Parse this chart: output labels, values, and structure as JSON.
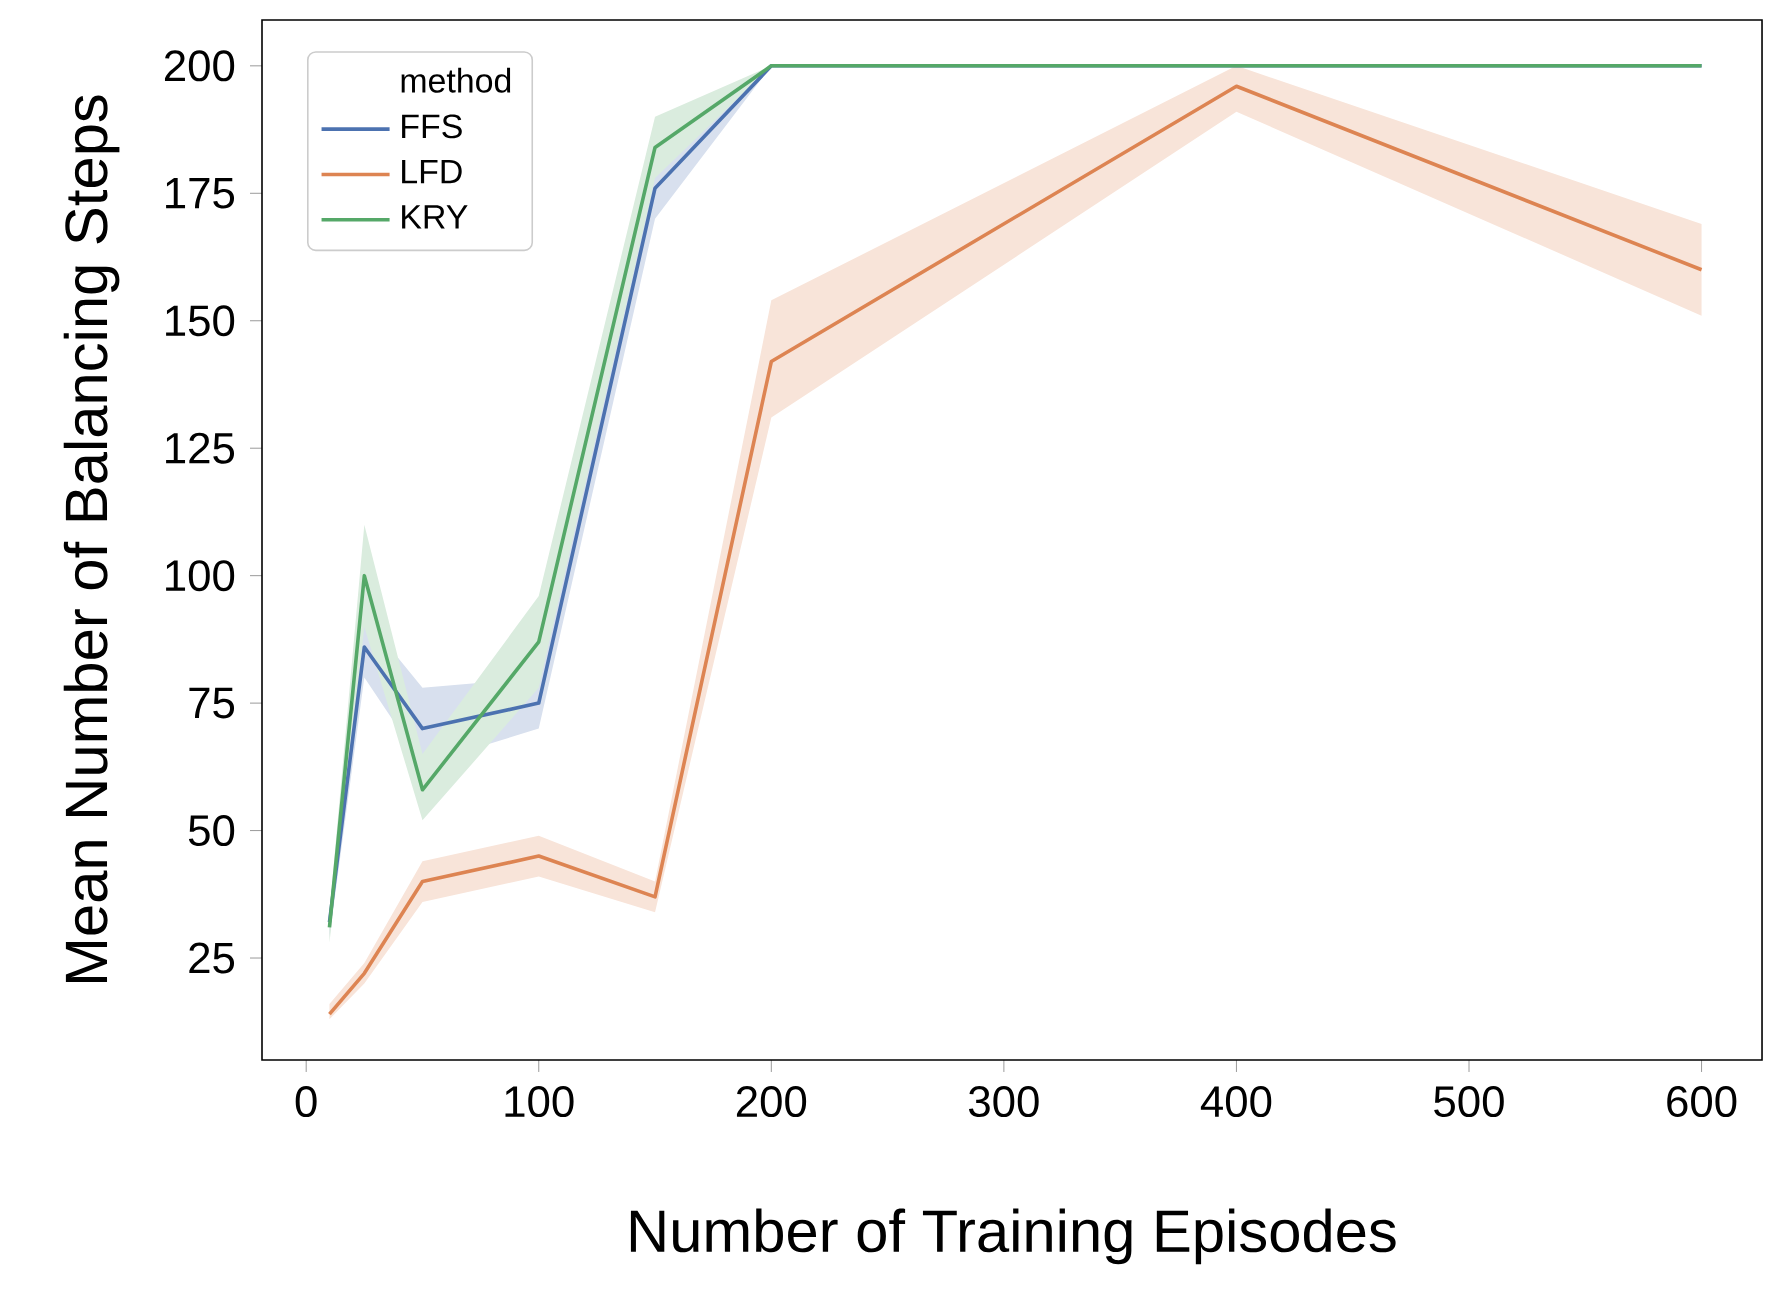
{
  "chart_data": {
    "type": "line",
    "xlabel": "Number of Training Episodes",
    "ylabel": "Mean Number of Balancing Steps",
    "legend_title": "method",
    "legend": "top left",
    "grid": false,
    "x": [
      10,
      25,
      50,
      100,
      150,
      200,
      400,
      600
    ],
    "xlim": [
      -19,
      626
    ],
    "ylim": [
      5,
      209
    ],
    "xticks": [
      0,
      100,
      200,
      300,
      400,
      500,
      600
    ],
    "yticks": [
      25,
      50,
      75,
      100,
      125,
      150,
      175,
      200
    ],
    "series": [
      {
        "name": "FFS",
        "color": "#4c72b0",
        "values": [
          32,
          86,
          70,
          75,
          176,
          200,
          200,
          200
        ],
        "lower": [
          29,
          80,
          63,
          70,
          170,
          200,
          200,
          200
        ],
        "upper": [
          34,
          92,
          78,
          80,
          183,
          200,
          200,
          200
        ]
      },
      {
        "name": "LFD",
        "color": "#dd8452",
        "values": [
          14,
          22,
          40,
          45,
          37,
          142,
          196,
          160
        ],
        "lower": [
          13,
          20,
          36,
          41,
          34,
          131,
          191,
          151
        ],
        "upper": [
          16,
          24,
          44,
          49,
          40,
          154,
          200,
          169
        ]
      },
      {
        "name": "KRY",
        "color": "#55a868",
        "values": [
          31,
          100,
          58,
          87,
          184,
          200,
          200,
          200
        ],
        "lower": [
          28,
          90,
          52,
          78,
          178,
          200,
          200,
          200
        ],
        "upper": [
          34,
          110,
          65,
          96,
          190,
          200,
          200,
          200
        ]
      }
    ]
  }
}
